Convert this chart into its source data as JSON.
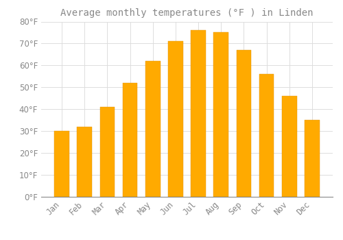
{
  "title": "Average monthly temperatures (°F ) in Linden",
  "months": [
    "Jan",
    "Feb",
    "Mar",
    "Apr",
    "May",
    "Jun",
    "Jul",
    "Aug",
    "Sep",
    "Oct",
    "Nov",
    "Dec"
  ],
  "values": [
    30,
    32,
    41,
    52,
    62,
    71,
    76,
    75,
    67,
    56,
    46,
    35
  ],
  "bar_color": "#FFAA00",
  "bar_color_bottom": "#F5A000",
  "bar_edge_color": "#E09000",
  "background_color": "#FFFFFF",
  "grid_color": "#DDDDDD",
  "text_color": "#888888",
  "ylim": [
    0,
    80
  ],
  "yticks": [
    0,
    10,
    20,
    30,
    40,
    50,
    60,
    70,
    80
  ],
  "title_fontsize": 10,
  "tick_fontsize": 8.5
}
